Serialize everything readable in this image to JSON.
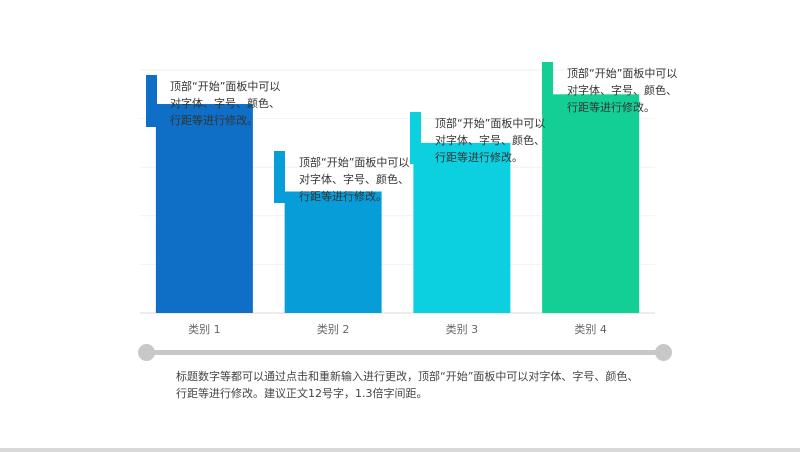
{
  "chart_data": {
    "type": "bar",
    "categories": [
      "类别 1",
      "类别 2",
      "类别 3",
      "类别 4"
    ],
    "values": [
      4.3,
      2.5,
      3.5,
      4.5
    ],
    "ylim": [
      0,
      5
    ],
    "grid": true,
    "colors": [
      "#0f6fc6",
      "#079dd9",
      "#0ccfdf",
      "#13cf95"
    ],
    "title": "",
    "xlabel": "",
    "ylabel": ""
  },
  "callouts": [
    {
      "text": "顶部“开始”面板中可以对字体、字号、颜色、行距等进行修改。",
      "color": "#0f6fc6"
    },
    {
      "text": "顶部“开始”面板中可以对字体、字号、颜色、行距等进行修改。",
      "color": "#079dd9"
    },
    {
      "text": "顶部“开始”面板中可以对字体、字号、颜色、行距等进行修改。",
      "color": "#0ccfdf"
    },
    {
      "text": "顶部“开始”面板中可以对字体、字号、颜色、行距等进行修改。",
      "color": "#13cf95"
    }
  ],
  "caption": "标题数字等都可以通过点击和重新输入进行更改，顶部“开始”面板中可以对字体、字号、颜色、行距等进行修改。建议正文12号字，1.3倍字间距。"
}
